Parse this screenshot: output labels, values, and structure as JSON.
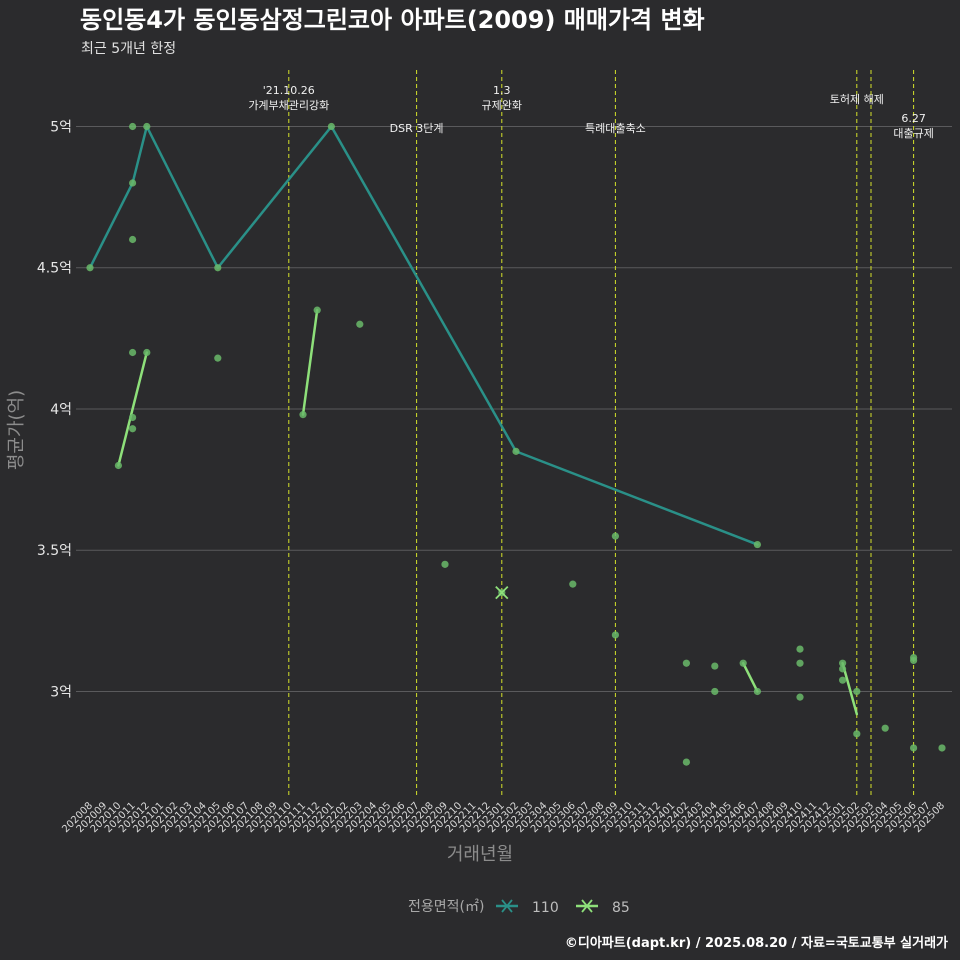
{
  "title": "동인동4가 동인동삼정그린코아 아파트(2009) 매매가격 변화",
  "subtitle": "최근 5개년 한정",
  "caption": "©디아파트(dapt.kr) / 2025.08.20 / 자료=국토교통부 실거래가",
  "colors": {
    "background": "#2b2b2d",
    "grid": "#5a5a5c",
    "vline": "#d4e22a",
    "series_110": "#2a9088",
    "series_85": "#8ee07a",
    "points": "#6aba6a"
  },
  "chart_data": {
    "type": "line",
    "xlabel": "거래년월",
    "ylabel": "평균가(억)",
    "ylim": [
      2.63,
      5.2
    ],
    "yticks": [
      {
        "value": 3.0,
        "label": "3억"
      },
      {
        "value": 3.5,
        "label": "3.5억"
      },
      {
        "value": 4.0,
        "label": "4억"
      },
      {
        "value": 4.5,
        "label": "4.5억"
      },
      {
        "value": 5.0,
        "label": "5억"
      }
    ],
    "categories": [
      "202008",
      "202009",
      "202010",
      "202011",
      "202012",
      "202101",
      "202102",
      "202103",
      "202104",
      "202105",
      "202106",
      "202107",
      "202108",
      "202109",
      "202110",
      "202111",
      "202112",
      "202201",
      "202202",
      "202203",
      "202204",
      "202205",
      "202206",
      "202207",
      "202208",
      "202209",
      "202210",
      "202211",
      "202212",
      "202301",
      "202302",
      "202303",
      "202304",
      "202305",
      "202306",
      "202307",
      "202308",
      "202309",
      "202310",
      "202311",
      "202312",
      "202401",
      "202402",
      "202403",
      "202404",
      "202405",
      "202406",
      "202407",
      "202408",
      "202409",
      "202410",
      "202411",
      "202412",
      "202501",
      "202502",
      "202503",
      "202504",
      "202505",
      "202506",
      "202507",
      "202508"
    ],
    "series": [
      {
        "name": "110",
        "marker": "x",
        "color": "#2a9088",
        "x": [
          "202008",
          "202011",
          "202012",
          "202105",
          "202201",
          "202302",
          "202407"
        ],
        "values": [
          4.5,
          4.8,
          5.0,
          4.5,
          5.0,
          3.85,
          3.52
        ]
      },
      {
        "name": "85",
        "marker": "x",
        "color": "#8ee07a",
        "segments": [
          {
            "x": [
              "202010",
              "202012"
            ],
            "values": [
              3.8,
              4.2
            ]
          },
          {
            "x": [
              "202111",
              "202112"
            ],
            "values": [
              3.98,
              4.35
            ]
          },
          {
            "x": [
              "202406",
              "202407"
            ],
            "values": [
              3.1,
              3.0
            ]
          },
          {
            "x": [
              "202501",
              "202502"
            ],
            "values": [
              3.1,
              2.92
            ]
          }
        ],
        "cross": {
          "x": "202301",
          "value": 3.35
        }
      }
    ],
    "points": [
      {
        "x": "202008",
        "value": 4.5
      },
      {
        "x": "202011",
        "value": 5.0
      },
      {
        "x": "202011",
        "value": 4.8
      },
      {
        "x": "202011",
        "value": 4.6
      },
      {
        "x": "202012",
        "value": 5.0
      },
      {
        "x": "202105",
        "value": 4.5
      },
      {
        "x": "202201",
        "value": 5.0
      },
      {
        "x": "202302",
        "value": 3.85
      },
      {
        "x": "202407",
        "value": 3.52
      },
      {
        "x": "202010",
        "value": 3.8
      },
      {
        "x": "202011",
        "value": 4.2
      },
      {
        "x": "202011",
        "value": 3.97
      },
      {
        "x": "202011",
        "value": 3.93
      },
      {
        "x": "202012",
        "value": 4.2
      },
      {
        "x": "202105",
        "value": 4.18
      },
      {
        "x": "202111",
        "value": 3.98
      },
      {
        "x": "202112",
        "value": 4.35
      },
      {
        "x": "202203",
        "value": 4.3
      },
      {
        "x": "202209",
        "value": 3.45
      },
      {
        "x": "202301",
        "value": 3.35
      },
      {
        "x": "202306",
        "value": 3.38
      },
      {
        "x": "202309",
        "value": 3.55
      },
      {
        "x": "202309",
        "value": 3.2
      },
      {
        "x": "202402",
        "value": 3.1
      },
      {
        "x": "202402",
        "value": 2.75
      },
      {
        "x": "202404",
        "value": 3.09
      },
      {
        "x": "202404",
        "value": 3.0
      },
      {
        "x": "202406",
        "value": 3.1
      },
      {
        "x": "202407",
        "value": 3.0
      },
      {
        "x": "202410",
        "value": 3.15
      },
      {
        "x": "202410",
        "value": 3.1
      },
      {
        "x": "202410",
        "value": 2.98
      },
      {
        "x": "202501",
        "value": 3.1
      },
      {
        "x": "202501",
        "value": 3.08
      },
      {
        "x": "202501",
        "value": 3.04
      },
      {
        "x": "202502",
        "value": 3.0
      },
      {
        "x": "202502",
        "value": 2.85
      },
      {
        "x": "202504",
        "value": 2.87
      },
      {
        "x": "202506",
        "value": 3.12
      },
      {
        "x": "202506",
        "value": 3.11
      },
      {
        "x": "202506",
        "value": 2.8
      },
      {
        "x": "202508",
        "value": 2.8
      }
    ],
    "annotations": [
      {
        "x": "202110",
        "lines": [
          "'21.10.26",
          "가계부채관리강화"
        ],
        "level": "high"
      },
      {
        "x": "202207",
        "lines": [
          "DSR 3단계"
        ],
        "level": "low"
      },
      {
        "x": "202301",
        "lines": [
          "1.3",
          "규제완화"
        ],
        "level": "high"
      },
      {
        "x": "202309",
        "lines": [
          "특례대출축소"
        ],
        "level": "low"
      },
      {
        "x": "202502",
        "lines": [
          "토허제 해제"
        ],
        "level": "mid"
      },
      {
        "x": "202503",
        "lines": [],
        "level": "none"
      },
      {
        "x": "202506",
        "lines": [
          "6.27",
          "대출규제"
        ],
        "level": "lowpair"
      }
    ],
    "legend": {
      "title": "전용면적(㎡)",
      "items": [
        "110",
        "85"
      ]
    }
  }
}
